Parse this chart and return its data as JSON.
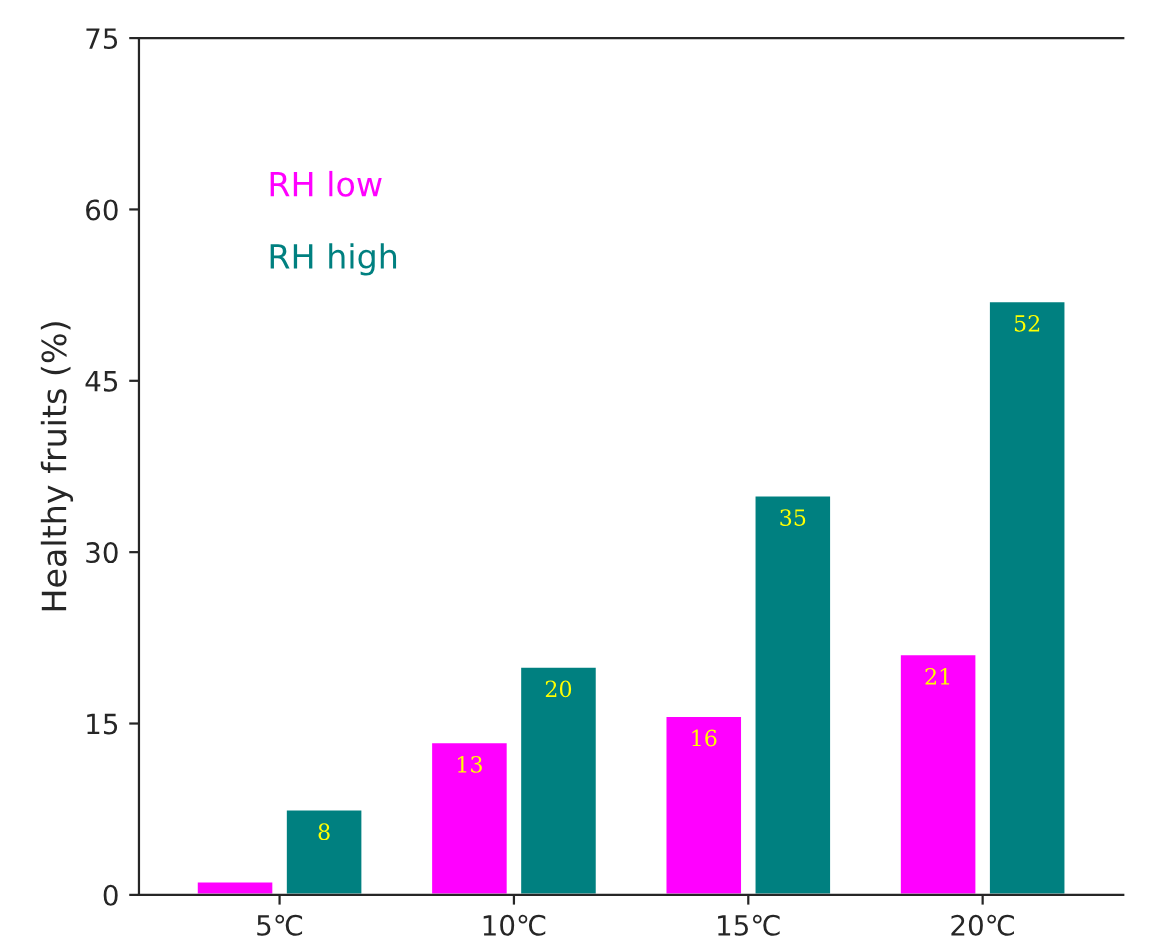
{
  "chart_data": {
    "type": "bar",
    "ylabel": "Healthy fruits (%)",
    "categories": [
      "5℃",
      "10℃",
      "15℃",
      "20℃"
    ],
    "series": [
      {
        "name": "RH low",
        "color": "#ff00ff",
        "values": [
          1.2,
          13.4,
          15.7,
          21.1
        ],
        "value_labels": [
          null,
          "13",
          "16",
          "21"
        ]
      },
      {
        "name": "RH high",
        "color": "#008080",
        "values": [
          7.5,
          20,
          35,
          52
        ],
        "value_labels": [
          "8",
          "20",
          "35",
          "52"
        ]
      }
    ],
    "ylim": [
      0,
      75
    ],
    "yticks": [
      0,
      15,
      30,
      45,
      60,
      75
    ],
    "grid": false,
    "legend": "top left"
  }
}
